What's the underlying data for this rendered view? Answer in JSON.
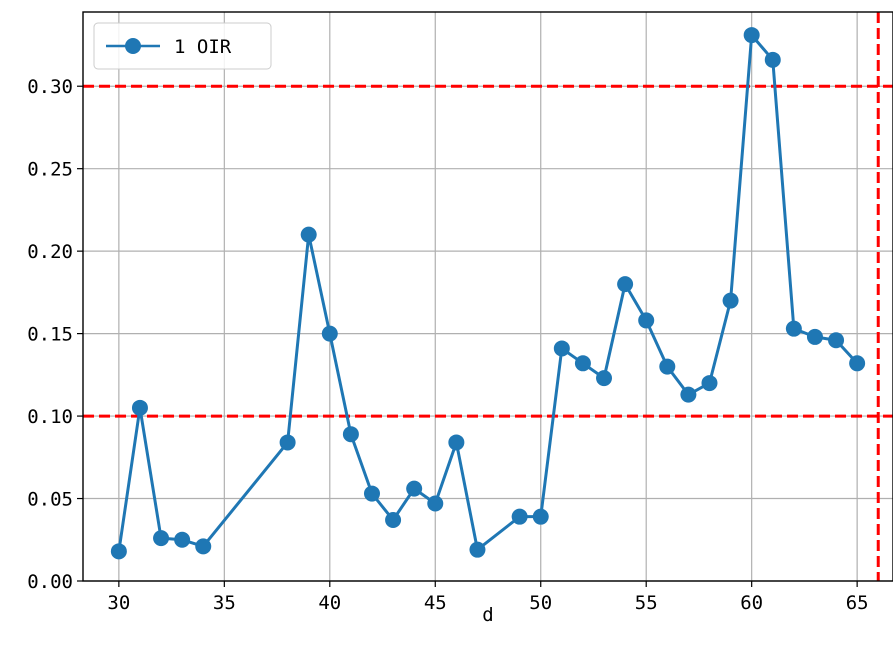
{
  "chart_data": {
    "type": "line",
    "xlabel": "d",
    "ylabel": "",
    "xlim": [
      28.3,
      66.7
    ],
    "ylim": [
      0.0,
      0.345
    ],
    "xticks": [
      30,
      35,
      40,
      45,
      50,
      55,
      60,
      65
    ],
    "yticks": [
      0.0,
      0.05,
      0.1,
      0.15,
      0.2,
      0.25,
      0.3
    ],
    "ytick_labels": [
      "0.00",
      "0.05",
      "0.10",
      "0.15",
      "0.20",
      "0.25",
      "0.30"
    ],
    "grid": true,
    "legend_position": "top-left",
    "series": [
      {
        "name": "1 OIR",
        "color": "#1f77b4",
        "marker": "circle",
        "x": [
          30,
          31,
          32,
          33,
          34,
          38,
          39,
          40,
          41,
          42,
          43,
          44,
          45,
          46,
          47,
          49,
          50,
          51,
          52,
          53,
          54,
          55,
          56,
          57,
          58,
          59,
          60,
          61,
          62,
          63,
          64,
          65
        ],
        "y": [
          0.018,
          0.105,
          0.026,
          0.025,
          0.021,
          0.084,
          0.21,
          0.15,
          0.089,
          0.053,
          0.037,
          0.056,
          0.047,
          0.084,
          0.019,
          0.039,
          0.039,
          0.141,
          0.132,
          0.123,
          0.18,
          0.158,
          0.13,
          0.113,
          0.12,
          0.17,
          0.331,
          0.316,
          0.153,
          0.148,
          0.146,
          0.132
        ]
      }
    ],
    "reference_lines": [
      {
        "axis": "y",
        "value": 0.1,
        "color": "#ff0000",
        "style": "dashed"
      },
      {
        "axis": "y",
        "value": 0.3,
        "color": "#ff0000",
        "style": "dashed"
      },
      {
        "axis": "x",
        "value": 66,
        "color": "#ff0000",
        "style": "dashed"
      }
    ]
  }
}
